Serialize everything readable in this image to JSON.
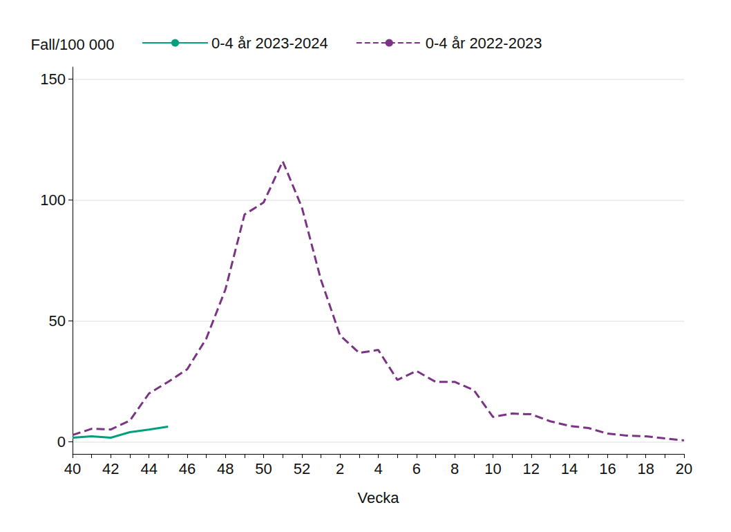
{
  "chart_data": {
    "type": "line",
    "x_label": "Vecka",
    "y_label": "Fall/100 000",
    "categories": [
      "40",
      null,
      "42",
      null,
      "44",
      null,
      "46",
      null,
      "48",
      null,
      "50",
      null,
      "52",
      null,
      "2",
      null,
      "4",
      null,
      "6",
      null,
      "8",
      null,
      "10",
      null,
      "12",
      null,
      "14",
      null,
      "16",
      null,
      "18",
      null,
      "20"
    ],
    "series": [
      {
        "name": "0-4 år 2023-2024",
        "color": "#00a07c",
        "line_style": "solid",
        "values": [
          1.7,
          2.3,
          1.7,
          4,
          5.1,
          6.3,
          null,
          null,
          null,
          null,
          null,
          null,
          null,
          null,
          null,
          null,
          null,
          null,
          null,
          null,
          null,
          null,
          null,
          null,
          null,
          null,
          null,
          null,
          null,
          null,
          null,
          null,
          null
        ]
      },
      {
        "name": "0-4 år 2022-2023",
        "color": "#7b3385",
        "line_style": "dashed",
        "values": [
          2.8,
          5.4,
          5.1,
          8.8,
          20,
          24.8,
          30,
          42.7,
          63,
          94,
          99,
          116,
          97,
          67,
          44,
          36.8,
          38,
          25.6,
          29.3,
          24.8,
          24.8,
          21.4,
          10.3,
          11.7,
          11.4,
          8.5,
          6.6,
          5.7,
          3.4,
          2.6,
          2.3,
          1.4,
          0.6
        ]
      }
    ],
    "ylim": [
      -5,
      155
    ],
    "yticks": [
      0,
      50,
      100,
      150
    ],
    "grid": true,
    "legend": "top"
  }
}
